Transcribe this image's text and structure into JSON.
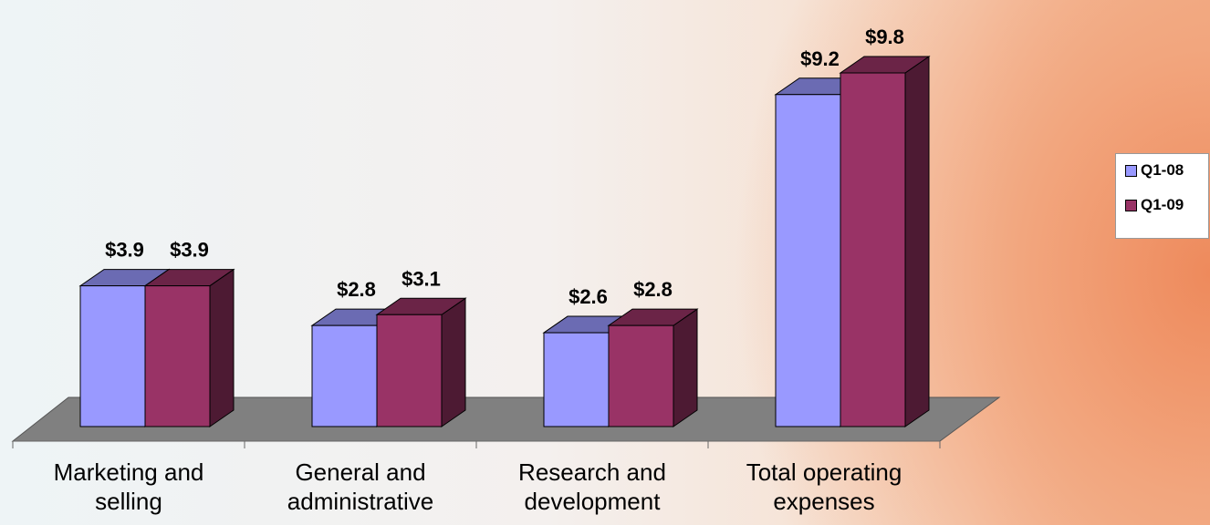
{
  "chart_data": {
    "type": "bar3d",
    "categories": [
      "Marketing and selling",
      "General and administrative",
      "Research and development",
      "Total operating expenses"
    ],
    "series": [
      {
        "name": "Q1-08",
        "color": "#9999ff",
        "values": [
          3.9,
          2.8,
          2.6,
          9.2
        ],
        "value_labels": [
          "$3.9",
          "$2.8",
          "$2.6",
          "$9.2"
        ]
      },
      {
        "name": "Q1-09",
        "color": "#993366",
        "values": [
          3.9,
          3.1,
          2.8,
          9.8
        ],
        "value_labels": [
          "$3.9",
          "$3.1",
          "$2.8",
          "$9.8"
        ]
      }
    ],
    "legend": "right"
  }
}
